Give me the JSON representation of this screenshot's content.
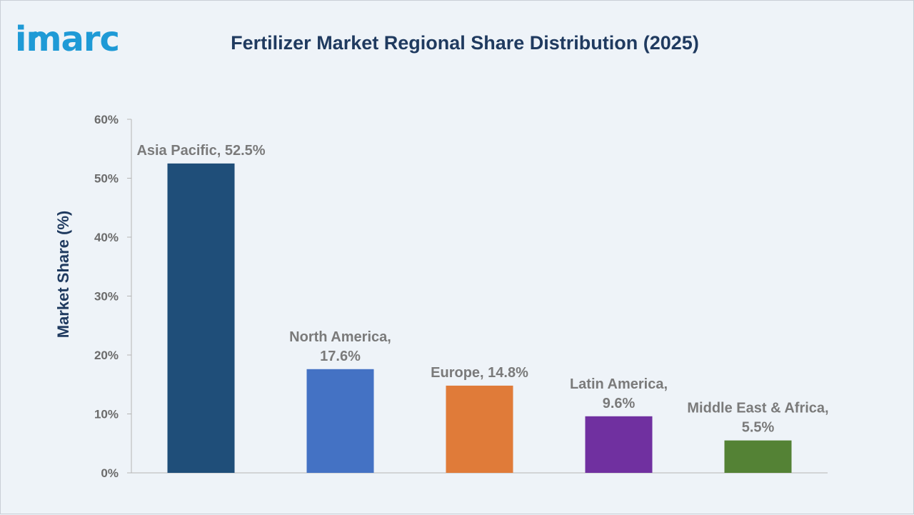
{
  "brand": {
    "logo_text": "imarc",
    "logo_color": "#1f9ad6"
  },
  "chart_data": {
    "type": "bar",
    "title": "Fertilizer Market Regional Share Distribution (2025)",
    "xlabel": "",
    "ylabel": "Market Share (%)",
    "ylim": [
      0,
      60
    ],
    "yticks": [
      0,
      10,
      20,
      30,
      40,
      50,
      60
    ],
    "ytick_labels": [
      "0%",
      "10%",
      "20%",
      "30%",
      "40%",
      "50%",
      "60%"
    ],
    "grid": false,
    "legend": "none",
    "categories": [
      "Asia Pacific",
      "North America",
      "Europe",
      "Latin America",
      "Middle East & Africa"
    ],
    "values": [
      52.5,
      17.6,
      14.8,
      9.6,
      5.5
    ],
    "data_labels": [
      [
        "Asia Pacific, 52.5%"
      ],
      [
        "North America,",
        "17.6%"
      ],
      [
        "Europe, 14.8%"
      ],
      [
        "Latin America,",
        "9.6%"
      ],
      [
        "Middle East & Africa,",
        "5.5%"
      ]
    ],
    "colors": [
      "#1f4e79",
      "#4472c4",
      "#e07b39",
      "#7030a0",
      "#548235"
    ]
  }
}
